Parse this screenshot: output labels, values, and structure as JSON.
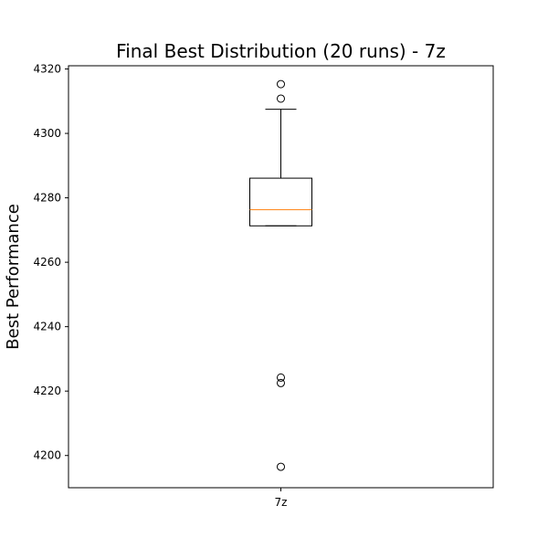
{
  "chart_data": {
    "type": "box",
    "title": "Final Best Distribution (20 runs) - 7z",
    "xlabel": "",
    "ylabel": "Best Performance",
    "categories": [
      "7z"
    ],
    "ylim": [
      4190,
      4321
    ],
    "yticks": [
      4200,
      4220,
      4240,
      4260,
      4280,
      4300,
      4320
    ],
    "grid": false,
    "boxes": [
      {
        "category": "7z",
        "whisker_low": 4271.3,
        "q1": 4271.3,
        "median": 4276.3,
        "q3": 4286.1,
        "whisker_high": 4307.5,
        "outliers": [
          4315.3,
          4310.8,
          4224.2,
          4222.5,
          4196.5
        ]
      }
    ],
    "colors": {
      "box": "#000000",
      "median": "#ff7f0e",
      "outlier": "#000000"
    }
  }
}
